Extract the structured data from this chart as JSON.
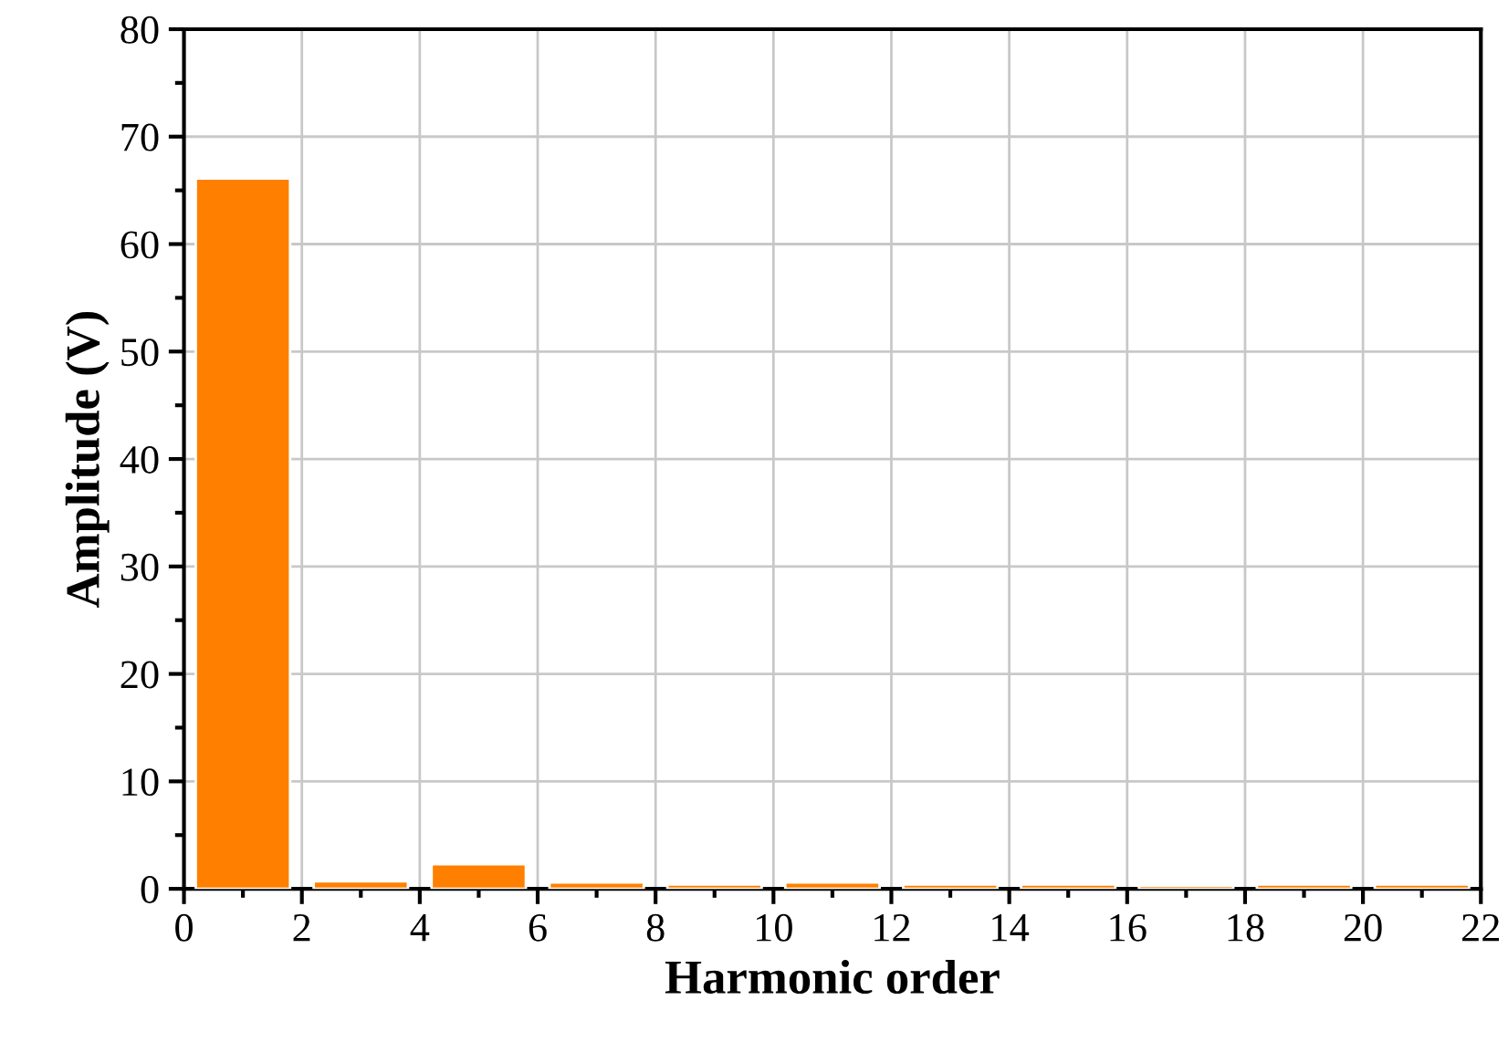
{
  "chart_data": {
    "type": "bar",
    "xlabel": "Harmonic order",
    "ylabel": "Amplitude (V)",
    "x": [
      1,
      3,
      5,
      7,
      9,
      11,
      13,
      15,
      17,
      19,
      21
    ],
    "values": [
      66.1,
      0.7,
      2.3,
      0.6,
      0.4,
      0.6,
      0.4,
      0.4,
      0.3,
      0.4,
      0.4
    ],
    "color": "#ff8000",
    "xlim": [
      0,
      22
    ],
    "xticks": [
      0,
      2,
      4,
      6,
      8,
      10,
      12,
      14,
      16,
      18,
      20,
      22
    ],
    "ylim": [
      0,
      80
    ],
    "yticks": [
      0,
      10,
      20,
      30,
      40,
      50,
      60,
      70,
      80
    ],
    "grid": true
  }
}
